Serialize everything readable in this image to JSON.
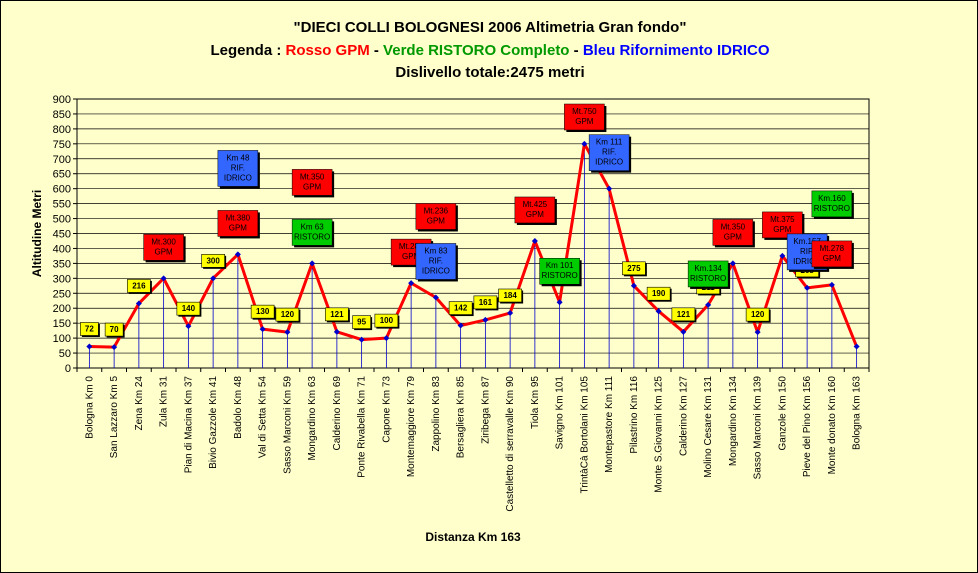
{
  "title": {
    "line1": "\"DIECI COLLI BOLOGNESI 2006 Altimetria Gran fondo\"",
    "line2_prefix": "Legenda : ",
    "line2_red": "Rosso GPM",
    "line2_sep1": " - ",
    "line2_green": "Verde RISTORO Completo",
    "line2_sep2": " - ",
    "line2_blue": "Bleu Rifornimento IDRICO",
    "line3": "Dislivello totale:2475 metri"
  },
  "colors": {
    "background": "#FFFFCC",
    "line": "#FF0000",
    "marker": "#0000CC",
    "drop": "#0000CC",
    "grid": "#000000",
    "red_box": "#FF0000",
    "green_box": "#00CC00",
    "blue_box": "#3366FF",
    "value_box": "#FFFF00",
    "legend_red": "#FF0000",
    "legend_green": "#009900",
    "legend_blue": "#0000FF"
  },
  "chart_data": {
    "type": "line",
    "xlabel": "Distanza Km 163",
    "ylabel": "Altitudine Metri",
    "ylim": [
      0,
      900
    ],
    "yticks": [
      0,
      50,
      100,
      150,
      200,
      250,
      300,
      350,
      400,
      450,
      500,
      550,
      600,
      650,
      700,
      750,
      800,
      850,
      900
    ],
    "grid": "horizontal",
    "categories": [
      "Bologna Km 0",
      "San Lazzaro Km 5",
      "Zena Km 24",
      "Zula Km 31",
      "Pian di Macina  Km 37",
      "Bivio Gazzole Km 41",
      "Badolo Km 48",
      "Val di Setta Km 54",
      "Sasso Marconi Km 59",
      "Mongardino Km 63",
      "Calderino Km 69",
      "Ponte Rivabella Km 71",
      "Capone Km 73",
      "Montemaggiore Km 79",
      "Zappolino Km 83",
      "Bersagliera Km 85",
      "Ziribega Km 87",
      "Castelletto di serravalle Km 90",
      "Tiola Km 95",
      "Savigno Km 101",
      "TrintàCà Bortolani Km 105",
      "Montepastore Km 111",
      "Pilastrino Km 116",
      "Monte S.Giovanni Km 125",
      "Calderino Km 127",
      "Molino Cesare Km 131",
      "Mongardino Km 134",
      "Sasso Marconi Km 139",
      "Ganzole Km 150",
      "Pieve del Pino Km 156",
      "Monte donato Km 160",
      "Bologna Km 163"
    ],
    "values": [
      72,
      70,
      216,
      300,
      140,
      300,
      380,
      130,
      120,
      350,
      121,
      95,
      100,
      284,
      236,
      142,
      161,
      184,
      425,
      220,
      750,
      600,
      275,
      190,
      121,
      211,
      350,
      120,
      375,
      268,
      278,
      72
    ],
    "value_labels": [
      "72",
      "70",
      "216",
      "",
      "140",
      "300",
      "",
      "130",
      "120",
      "",
      "121",
      "95",
      "100",
      "",
      "",
      "142",
      "161",
      "184",
      "",
      "",
      "",
      "",
      "275",
      "190",
      "121",
      "211",
      "",
      "120",
      "",
      "268",
      "",
      ""
    ],
    "annotations": [
      {
        "index": 3,
        "color": "red",
        "lines": [
          "Mt.300",
          "GPM"
        ]
      },
      {
        "index": 6,
        "color": "red",
        "lines": [
          "Mt.380",
          "GPM"
        ]
      },
      {
        "index": 6,
        "color": "blue",
        "lines": [
          "Km 48",
          "RIF.",
          "IDRICO"
        ]
      },
      {
        "index": 9,
        "color": "green",
        "lines": [
          "Km 63",
          "RISTORO"
        ]
      },
      {
        "index": 9,
        "color": "red",
        "lines": [
          "Mt.350",
          "GPM"
        ]
      },
      {
        "index": 13,
        "color": "red",
        "lines": [
          "Mt.284",
          "GPM"
        ]
      },
      {
        "index": 14,
        "color": "blue",
        "lines": [
          "Km 83",
          "RIF.",
          "IDRICO"
        ]
      },
      {
        "index": 14,
        "color": "red",
        "lines": [
          "Mt.236",
          "GPM"
        ]
      },
      {
        "index": 18,
        "color": "red",
        "lines": [
          "Mt.425",
          "GPM"
        ]
      },
      {
        "index": 19,
        "color": "green",
        "lines": [
          "Km 101",
          "RISTORO"
        ]
      },
      {
        "index": 20,
        "color": "red",
        "lines": [
          "Mt.750",
          "GPM"
        ]
      },
      {
        "index": 21,
        "color": "blue",
        "lines": [
          "Km 111",
          "RIF.",
          "IDRICO"
        ]
      },
      {
        "index": 25,
        "color": "green",
        "lines": [
          "Km.134",
          "RISTORO"
        ]
      },
      {
        "index": 26,
        "color": "red",
        "lines": [
          "Mt.350",
          "GPM"
        ]
      },
      {
        "index": 28,
        "color": "red",
        "lines": [
          "Mt.375",
          "GPM"
        ]
      },
      {
        "index": 29,
        "color": "blue",
        "lines": [
          "Km.157",
          "RIF.",
          "IDRICO"
        ]
      },
      {
        "index": 30,
        "color": "red",
        "lines": [
          "Mt.278",
          "GPM"
        ]
      },
      {
        "index": 30,
        "color": "green",
        "lines": [
          "Km.160",
          "RISTORO"
        ]
      }
    ]
  }
}
